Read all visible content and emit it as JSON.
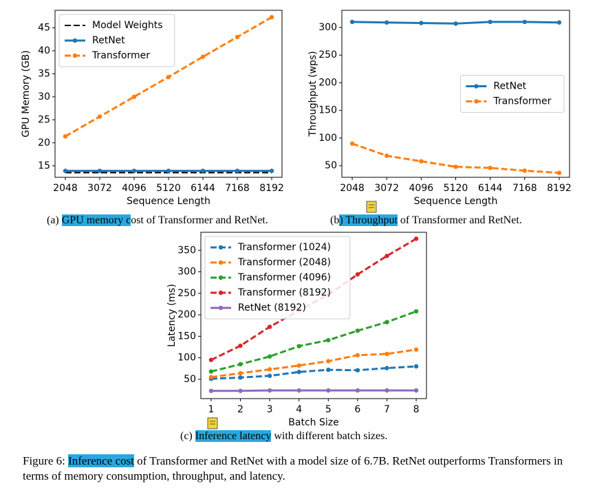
{
  "chart_data": [
    {
      "type": "line",
      "xlabel": "Sequence Length",
      "ylabel": "GPU Memory (GB)",
      "x": [
        2048,
        3072,
        4096,
        5120,
        6144,
        7168,
        8192
      ],
      "xlim": [
        1741,
        8499
      ],
      "xticks": [
        2048,
        3072,
        4096,
        5120,
        6144,
        7168,
        8192
      ],
      "ylim": [
        12.5,
        48.8
      ],
      "yticks": [
        15,
        20,
        25,
        30,
        35,
        40,
        45
      ],
      "legend": "upper left",
      "series": [
        {
          "name": "Model Weights",
          "color": "#000000",
          "linestyle": "dashed",
          "marker": false,
          "values": [
            13.5,
            13.5,
            13.5,
            13.5,
            13.5,
            13.5,
            13.5
          ]
        },
        {
          "name": "RetNet",
          "color": "#1f77b4",
          "linestyle": "solid",
          "marker": true,
          "values": [
            13.9,
            13.9,
            13.9,
            13.9,
            13.9,
            13.9,
            13.9
          ]
        },
        {
          "name": "Transformer",
          "color": "#ff7f0e",
          "linestyle": "dashed",
          "marker": true,
          "values": [
            21.4,
            25.7,
            30.0,
            34.3,
            38.7,
            43.0,
            47.3
          ]
        }
      ]
    },
    {
      "type": "line",
      "xlabel": "Sequence Length",
      "ylabel": "Throughput (wps)",
      "x": [
        2048,
        3072,
        4096,
        5120,
        6144,
        7168,
        8192
      ],
      "xlim": [
        1741,
        8499
      ],
      "xticks": [
        2048,
        3072,
        4096,
        5120,
        6144,
        7168,
        8192
      ],
      "ylim": [
        29,
        331
      ],
      "yticks": [
        50,
        100,
        150,
        200,
        250,
        300
      ],
      "legend": "center right",
      "series": [
        {
          "name": "RetNet",
          "color": "#1f77b4",
          "linestyle": "solid",
          "marker": true,
          "values": [
            310,
            309,
            308,
            307,
            310,
            310,
            309
          ]
        },
        {
          "name": "Transformer",
          "color": "#ff7f0e",
          "linestyle": "dashed",
          "marker": true,
          "values": [
            90,
            68,
            58,
            48,
            46,
            41,
            37
          ]
        }
      ]
    },
    {
      "type": "line",
      "xlabel": "Batch Size",
      "ylabel": "Latency (ms)",
      "x": [
        1,
        2,
        3,
        4,
        5,
        6,
        7,
        8
      ],
      "xlim": [
        0.65,
        8.35
      ],
      "xticks": [
        1,
        2,
        3,
        4,
        5,
        6,
        7,
        8
      ],
      "ylim": [
        5,
        392
      ],
      "yticks": [
        50,
        100,
        150,
        200,
        250,
        300,
        350
      ],
      "legend": "upper left",
      "series": [
        {
          "name": "Transformer (1024)",
          "color": "#1f77b4",
          "linestyle": "dashed",
          "marker": true,
          "values": [
            51,
            54,
            58,
            67,
            72,
            71,
            76,
            80
          ]
        },
        {
          "name": "Transformer (2048)",
          "color": "#ff7f0e",
          "linestyle": "dashed",
          "marker": true,
          "values": [
            55,
            64,
            73,
            82,
            92,
            106,
            109,
            119
          ]
        },
        {
          "name": "Transformer (4096)",
          "color": "#2ca02c",
          "linestyle": "dashed",
          "marker": true,
          "values": [
            68,
            85,
            103,
            127,
            141,
            163,
            183,
            208
          ]
        },
        {
          "name": "Transformer (8192)",
          "color": "#d62728",
          "linestyle": "dashed",
          "marker": true,
          "values": [
            95,
            128,
            172,
            210,
            247,
            294,
            337,
            377
          ]
        },
        {
          "name": "RetNet (8192)",
          "color": "#9467bd",
          "linestyle": "solid",
          "marker": true,
          "values": [
            23,
            23,
            24,
            24,
            24,
            24,
            24,
            24
          ]
        }
      ]
    }
  ],
  "captions": [
    {
      "prefix": "(a)",
      "highlighted": "GPU memory c",
      "rest": "ost of Transformer and RetNet."
    },
    {
      "prefix": "(b",
      "highlighted": ") Throughput",
      "rest": "of Transformer and RetNet."
    },
    {
      "prefix": "(c)",
      "highlighted": "Inference latency",
      "rest": "with different batch sizes."
    }
  ],
  "figure_caption": {
    "prefix": "Figure 6:",
    "highlighted": "Inference cost",
    "rest": "of Transformer and RetNet with a model size of 6.7B. RetNet outperforms Transformers in terms of memory consumption, throughput, and latency."
  }
}
